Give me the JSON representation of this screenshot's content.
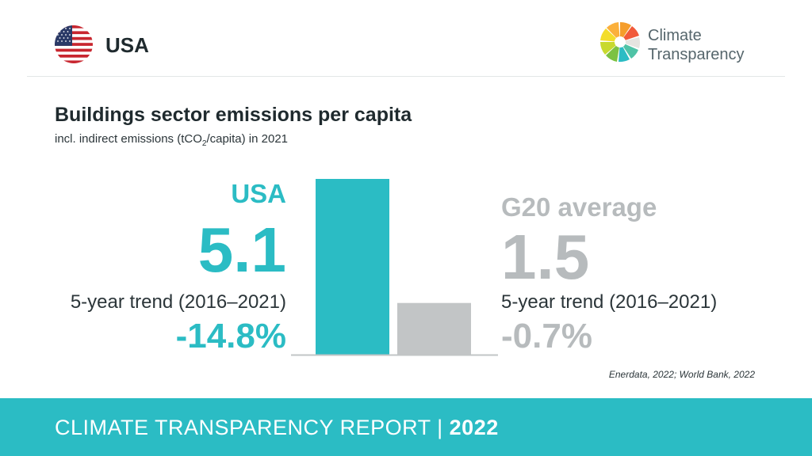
{
  "header": {
    "country": "USA",
    "logo_line1": "Climate",
    "logo_line2": "Transparency",
    "flag_icon": "usa-flag-icon",
    "logo_icon": "climate-transparency-logo-icon"
  },
  "colors": {
    "accent": "#2bbcc4",
    "g20_gray": "#c2c5c6",
    "text": "#1f2a2e"
  },
  "chart_data": {
    "type": "bar",
    "title": "Buildings sector emissions per capita",
    "subtitle_main": "incl. indirect emissions (tCO",
    "subtitle_sub": "2",
    "subtitle_end": "/capita) in 2021",
    "categories": [
      "USA",
      "G20 average"
    ],
    "values": [
      5.1,
      1.5
    ],
    "value_labels": [
      "5.1",
      "1.5"
    ],
    "trend_label": "5-year trend (2016–2021)",
    "trends": [
      "-14.8%",
      "-0.7%"
    ],
    "colors": [
      "#2bbcc4",
      "#c2c5c6"
    ],
    "ylim": [
      0,
      5.1
    ]
  },
  "source": "Enerdata, 2022; World Bank, 2022",
  "footer": {
    "report": "CLIMATE TRANSPARENCY REPORT",
    "separator": "|",
    "year": "2022"
  }
}
